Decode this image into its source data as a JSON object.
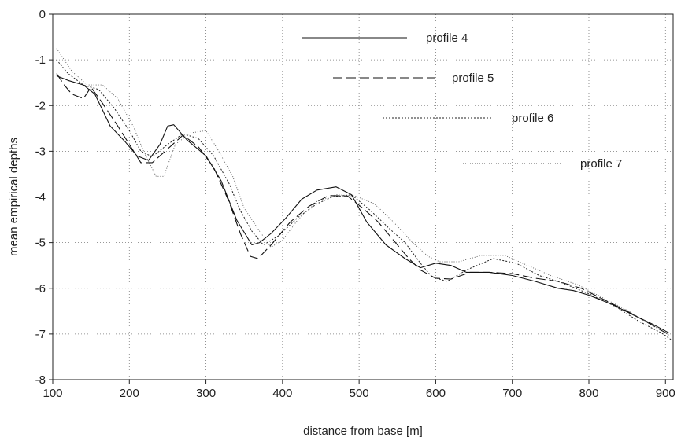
{
  "chart_data": {
    "type": "line",
    "title": "",
    "xlabel": "distance from base [m]",
    "ylabel": "mean empirical depths",
    "xlim": [
      100,
      910
    ],
    "ylim": [
      -8,
      0
    ],
    "xticks": [
      100,
      200,
      300,
      400,
      500,
      600,
      700,
      800,
      900
    ],
    "yticks": [
      0,
      -1,
      -2,
      -3,
      -4,
      -5,
      -6,
      -7,
      -8
    ],
    "grid": true,
    "legend_position": "top-right",
    "series": [
      {
        "name": "profile 4",
        "style": "solid",
        "color": "#111111",
        "points": [
          [
            105,
            -1.35
          ],
          [
            120,
            -1.45
          ],
          [
            140,
            -1.55
          ],
          [
            155,
            -1.75
          ],
          [
            175,
            -2.45
          ],
          [
            195,
            -2.8
          ],
          [
            210,
            -3.1
          ],
          [
            225,
            -3.2
          ],
          [
            240,
            -2.85
          ],
          [
            250,
            -2.45
          ],
          [
            258,
            -2.42
          ],
          [
            275,
            -2.75
          ],
          [
            300,
            -3.1
          ],
          [
            320,
            -3.65
          ],
          [
            340,
            -4.5
          ],
          [
            360,
            -5.05
          ],
          [
            370,
            -5.0
          ],
          [
            385,
            -4.8
          ],
          [
            405,
            -4.45
          ],
          [
            425,
            -4.05
          ],
          [
            445,
            -3.85
          ],
          [
            470,
            -3.78
          ],
          [
            490,
            -3.95
          ],
          [
            510,
            -4.55
          ],
          [
            535,
            -5.05
          ],
          [
            560,
            -5.35
          ],
          [
            580,
            -5.55
          ],
          [
            600,
            -5.45
          ],
          [
            620,
            -5.5
          ],
          [
            640,
            -5.65
          ],
          [
            670,
            -5.65
          ],
          [
            700,
            -5.72
          ],
          [
            730,
            -5.85
          ],
          [
            760,
            -6.0
          ],
          [
            780,
            -6.05
          ],
          [
            800,
            -6.15
          ],
          [
            830,
            -6.35
          ],
          [
            860,
            -6.6
          ],
          [
            885,
            -6.8
          ],
          [
            905,
            -6.98
          ]
        ]
      },
      {
        "name": "profile 5",
        "style": "dashed",
        "color": "#111111",
        "points": [
          [
            105,
            -1.3
          ],
          [
            115,
            -1.55
          ],
          [
            125,
            -1.75
          ],
          [
            140,
            -1.85
          ],
          [
            150,
            -1.6
          ],
          [
            165,
            -1.95
          ],
          [
            185,
            -2.45
          ],
          [
            200,
            -2.85
          ],
          [
            215,
            -3.25
          ],
          [
            230,
            -3.25
          ],
          [
            250,
            -2.95
          ],
          [
            270,
            -2.65
          ],
          [
            290,
            -2.9
          ],
          [
            310,
            -3.35
          ],
          [
            330,
            -4.1
          ],
          [
            345,
            -4.8
          ],
          [
            358,
            -5.3
          ],
          [
            368,
            -5.35
          ],
          [
            385,
            -5.05
          ],
          [
            410,
            -4.55
          ],
          [
            435,
            -4.2
          ],
          [
            460,
            -3.97
          ],
          [
            485,
            -3.98
          ],
          [
            505,
            -4.25
          ],
          [
            525,
            -4.55
          ],
          [
            545,
            -4.95
          ],
          [
            565,
            -5.35
          ],
          [
            580,
            -5.6
          ],
          [
            600,
            -5.78
          ],
          [
            620,
            -5.8
          ],
          [
            645,
            -5.65
          ],
          [
            670,
            -5.65
          ],
          [
            700,
            -5.68
          ],
          [
            730,
            -5.78
          ],
          [
            760,
            -5.85
          ],
          [
            790,
            -6.0
          ],
          [
            820,
            -6.25
          ],
          [
            850,
            -6.5
          ],
          [
            880,
            -6.78
          ],
          [
            905,
            -7.02
          ]
        ]
      },
      {
        "name": "profile 6",
        "style": "dotted",
        "color": "#222222",
        "points": [
          [
            105,
            -1.0
          ],
          [
            120,
            -1.3
          ],
          [
            140,
            -1.55
          ],
          [
            160,
            -1.65
          ],
          [
            180,
            -2.05
          ],
          [
            200,
            -2.55
          ],
          [
            215,
            -3.0
          ],
          [
            230,
            -3.12
          ],
          [
            250,
            -2.85
          ],
          [
            270,
            -2.62
          ],
          [
            290,
            -2.72
          ],
          [
            310,
            -3.1
          ],
          [
            330,
            -3.7
          ],
          [
            345,
            -4.3
          ],
          [
            360,
            -4.75
          ],
          [
            375,
            -5.05
          ],
          [
            395,
            -4.85
          ],
          [
            420,
            -4.45
          ],
          [
            445,
            -4.15
          ],
          [
            465,
            -4.0
          ],
          [
            490,
            -3.95
          ],
          [
            515,
            -4.3
          ],
          [
            540,
            -4.7
          ],
          [
            560,
            -5.0
          ],
          [
            580,
            -5.45
          ],
          [
            595,
            -5.75
          ],
          [
            615,
            -5.85
          ],
          [
            640,
            -5.6
          ],
          [
            675,
            -5.35
          ],
          [
            705,
            -5.45
          ],
          [
            735,
            -5.72
          ],
          [
            765,
            -5.88
          ],
          [
            800,
            -6.12
          ],
          [
            835,
            -6.4
          ],
          [
            865,
            -6.72
          ],
          [
            895,
            -6.98
          ],
          [
            907,
            -7.12
          ]
        ]
      },
      {
        "name": "profile 7",
        "style": "fine-dotted",
        "color": "#555555",
        "points": [
          [
            105,
            -0.75
          ],
          [
            125,
            -1.25
          ],
          [
            145,
            -1.55
          ],
          [
            165,
            -1.55
          ],
          [
            185,
            -1.85
          ],
          [
            205,
            -2.45
          ],
          [
            220,
            -3.05
          ],
          [
            235,
            -3.55
          ],
          [
            245,
            -3.55
          ],
          [
            260,
            -2.85
          ],
          [
            280,
            -2.6
          ],
          [
            300,
            -2.55
          ],
          [
            315,
            -2.95
          ],
          [
            335,
            -3.55
          ],
          [
            350,
            -4.25
          ],
          [
            370,
            -4.75
          ],
          [
            385,
            -5.1
          ],
          [
            400,
            -4.95
          ],
          [
            420,
            -4.5
          ],
          [
            445,
            -4.1
          ],
          [
            470,
            -3.95
          ],
          [
            495,
            -3.98
          ],
          [
            520,
            -4.15
          ],
          [
            545,
            -4.55
          ],
          [
            570,
            -5.0
          ],
          [
            590,
            -5.3
          ],
          [
            605,
            -5.42
          ],
          [
            630,
            -5.42
          ],
          [
            660,
            -5.28
          ],
          [
            690,
            -5.28
          ],
          [
            720,
            -5.5
          ],
          [
            750,
            -5.72
          ],
          [
            785,
            -5.92
          ],
          [
            815,
            -6.18
          ],
          [
            850,
            -6.48
          ],
          [
            880,
            -6.78
          ],
          [
            907,
            -7.05
          ]
        ]
      }
    ]
  }
}
